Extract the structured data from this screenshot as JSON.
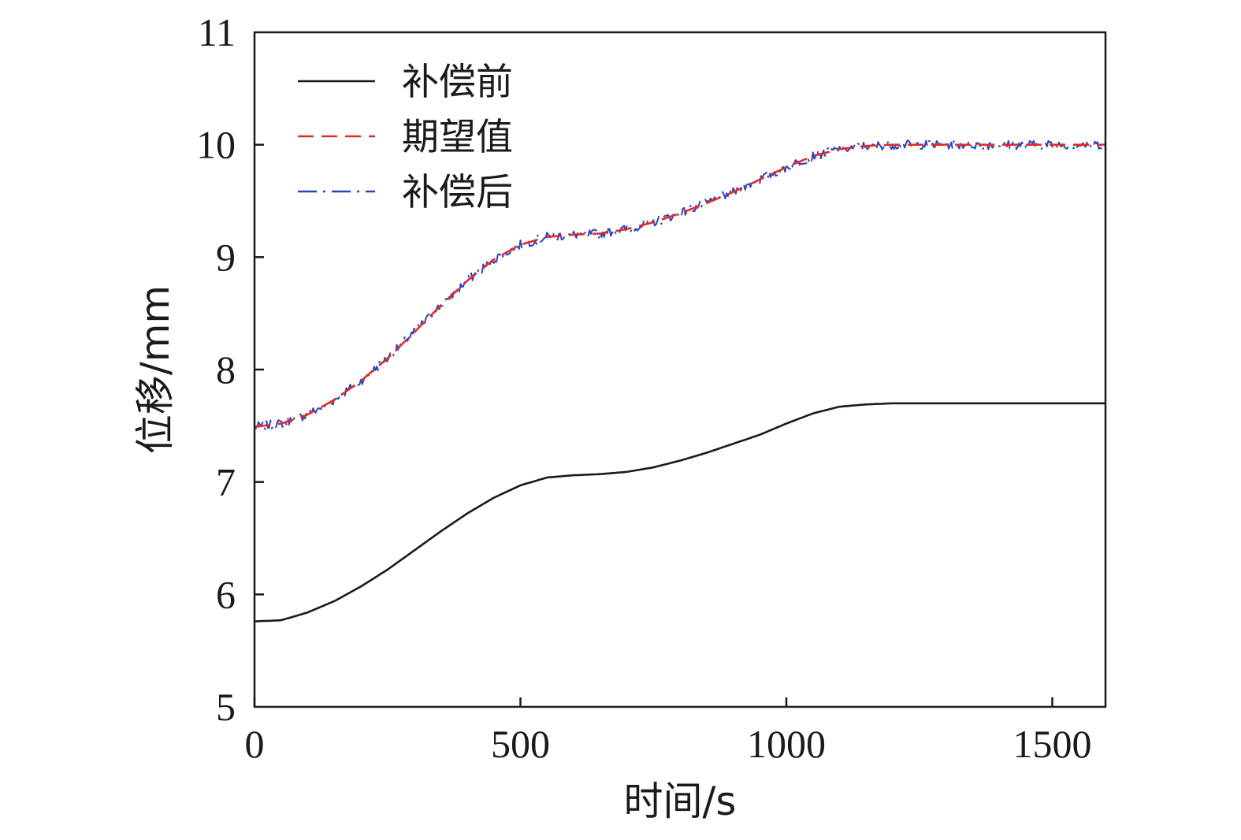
{
  "chart_data": {
    "type": "line",
    "xlabel": "时间/s",
    "ylabel": "位移/mm",
    "xlim": [
      0,
      1600
    ],
    "ylim": [
      5,
      11
    ],
    "xticks": [
      0,
      500,
      1000,
      1500
    ],
    "yticks": [
      5,
      6,
      7,
      8,
      9,
      10,
      11
    ],
    "grid": false,
    "legend_position": "top-left",
    "series": [
      {
        "name": "补偿前",
        "color": "#1a1a1a",
        "style": "solid",
        "x": [
          0,
          50,
          100,
          150,
          200,
          250,
          300,
          350,
          400,
          450,
          500,
          550,
          600,
          650,
          700,
          750,
          800,
          850,
          900,
          950,
          1000,
          1050,
          1100,
          1150,
          1200,
          1300,
          1400,
          1500,
          1600
        ],
        "y": [
          5.76,
          5.77,
          5.84,
          5.94,
          6.07,
          6.22,
          6.39,
          6.56,
          6.72,
          6.86,
          6.97,
          7.04,
          7.06,
          7.07,
          7.09,
          7.13,
          7.19,
          7.26,
          7.34,
          7.42,
          7.52,
          7.61,
          7.67,
          7.69,
          7.7,
          7.7,
          7.7,
          7.7,
          7.7
        ]
      },
      {
        "name": "期望值",
        "color": "#e02a2a",
        "style": "dashed",
        "x": [
          0,
          50,
          100,
          150,
          200,
          250,
          300,
          350,
          400,
          450,
          500,
          550,
          600,
          650,
          700,
          750,
          800,
          850,
          900,
          950,
          1000,
          1050,
          1100,
          1150,
          1200,
          1300,
          1400,
          1500,
          1600
        ],
        "y": [
          7.49,
          7.52,
          7.6,
          7.73,
          7.9,
          8.1,
          8.33,
          8.57,
          8.79,
          8.98,
          9.11,
          9.18,
          9.2,
          9.21,
          9.25,
          9.31,
          9.39,
          9.48,
          9.58,
          9.69,
          9.8,
          9.9,
          9.96,
          9.99,
          10.0,
          10.0,
          10.0,
          10.0,
          10.0
        ]
      },
      {
        "name": "补偿后",
        "color": "#2c45b5",
        "style": "dashdot",
        "noise_amplitude": 0.04,
        "x": [
          0,
          50,
          100,
          150,
          200,
          250,
          300,
          350,
          400,
          450,
          500,
          550,
          600,
          650,
          700,
          750,
          800,
          850,
          900,
          950,
          1000,
          1050,
          1100,
          1150,
          1200,
          1300,
          1400,
          1500,
          1600
        ],
        "y": [
          7.49,
          7.52,
          7.6,
          7.73,
          7.9,
          8.1,
          8.33,
          8.57,
          8.79,
          8.98,
          9.11,
          9.18,
          9.2,
          9.21,
          9.25,
          9.31,
          9.39,
          9.48,
          9.58,
          9.69,
          9.8,
          9.9,
          9.96,
          9.99,
          10.0,
          10.0,
          10.0,
          10.0,
          10.0
        ]
      }
    ]
  }
}
